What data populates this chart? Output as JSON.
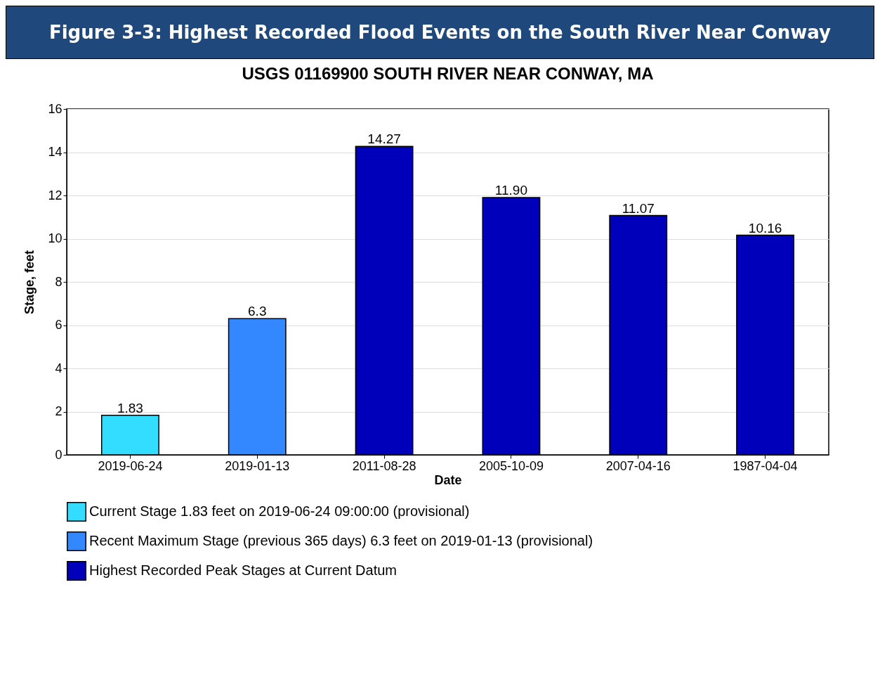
{
  "chart_data": {
    "type": "bar",
    "title": "Figure 3-3: Highest Recorded Flood Events on the South River Near Conway",
    "subtitle": "USGS 01169900 SOUTH RIVER NEAR CONWAY, MA",
    "xlabel": "Date",
    "ylabel": "Stage, feet",
    "categories": [
      "2019-06-24",
      "2019-01-13",
      "2011-08-28",
      "2005-10-09",
      "2007-04-16",
      "1987-04-04"
    ],
    "series": [
      {
        "name": "Current Stage 1.83 feet on 2019-06-24 09:00:00 (provisional)",
        "color": "#33ddff",
        "values": [
          1.83,
          null,
          null,
          null,
          null,
          null
        ],
        "value_labels": [
          "1.83",
          null,
          null,
          null,
          null,
          null
        ]
      },
      {
        "name": "Recent Maximum Stage (previous 365 days) 6.3 feet on 2019-01-13 (provisional)",
        "color": "#3388ff",
        "values": [
          null,
          6.3,
          null,
          null,
          null,
          null
        ],
        "value_labels": [
          null,
          "6.3",
          null,
          null,
          null,
          null
        ]
      },
      {
        "name": "Highest Recorded Peak Stages at Current Datum",
        "color": "#0000bb",
        "values": [
          null,
          null,
          14.27,
          11.9,
          11.07,
          10.16
        ],
        "value_labels": [
          null,
          null,
          "14.27",
          "11.90",
          "11.07",
          "10.16"
        ]
      }
    ],
    "ylim": [
      0,
      16
    ],
    "yticks": [
      0,
      2,
      4,
      6,
      8,
      10,
      12,
      14,
      16
    ],
    "grid": "y",
    "legend": "bottom left"
  }
}
